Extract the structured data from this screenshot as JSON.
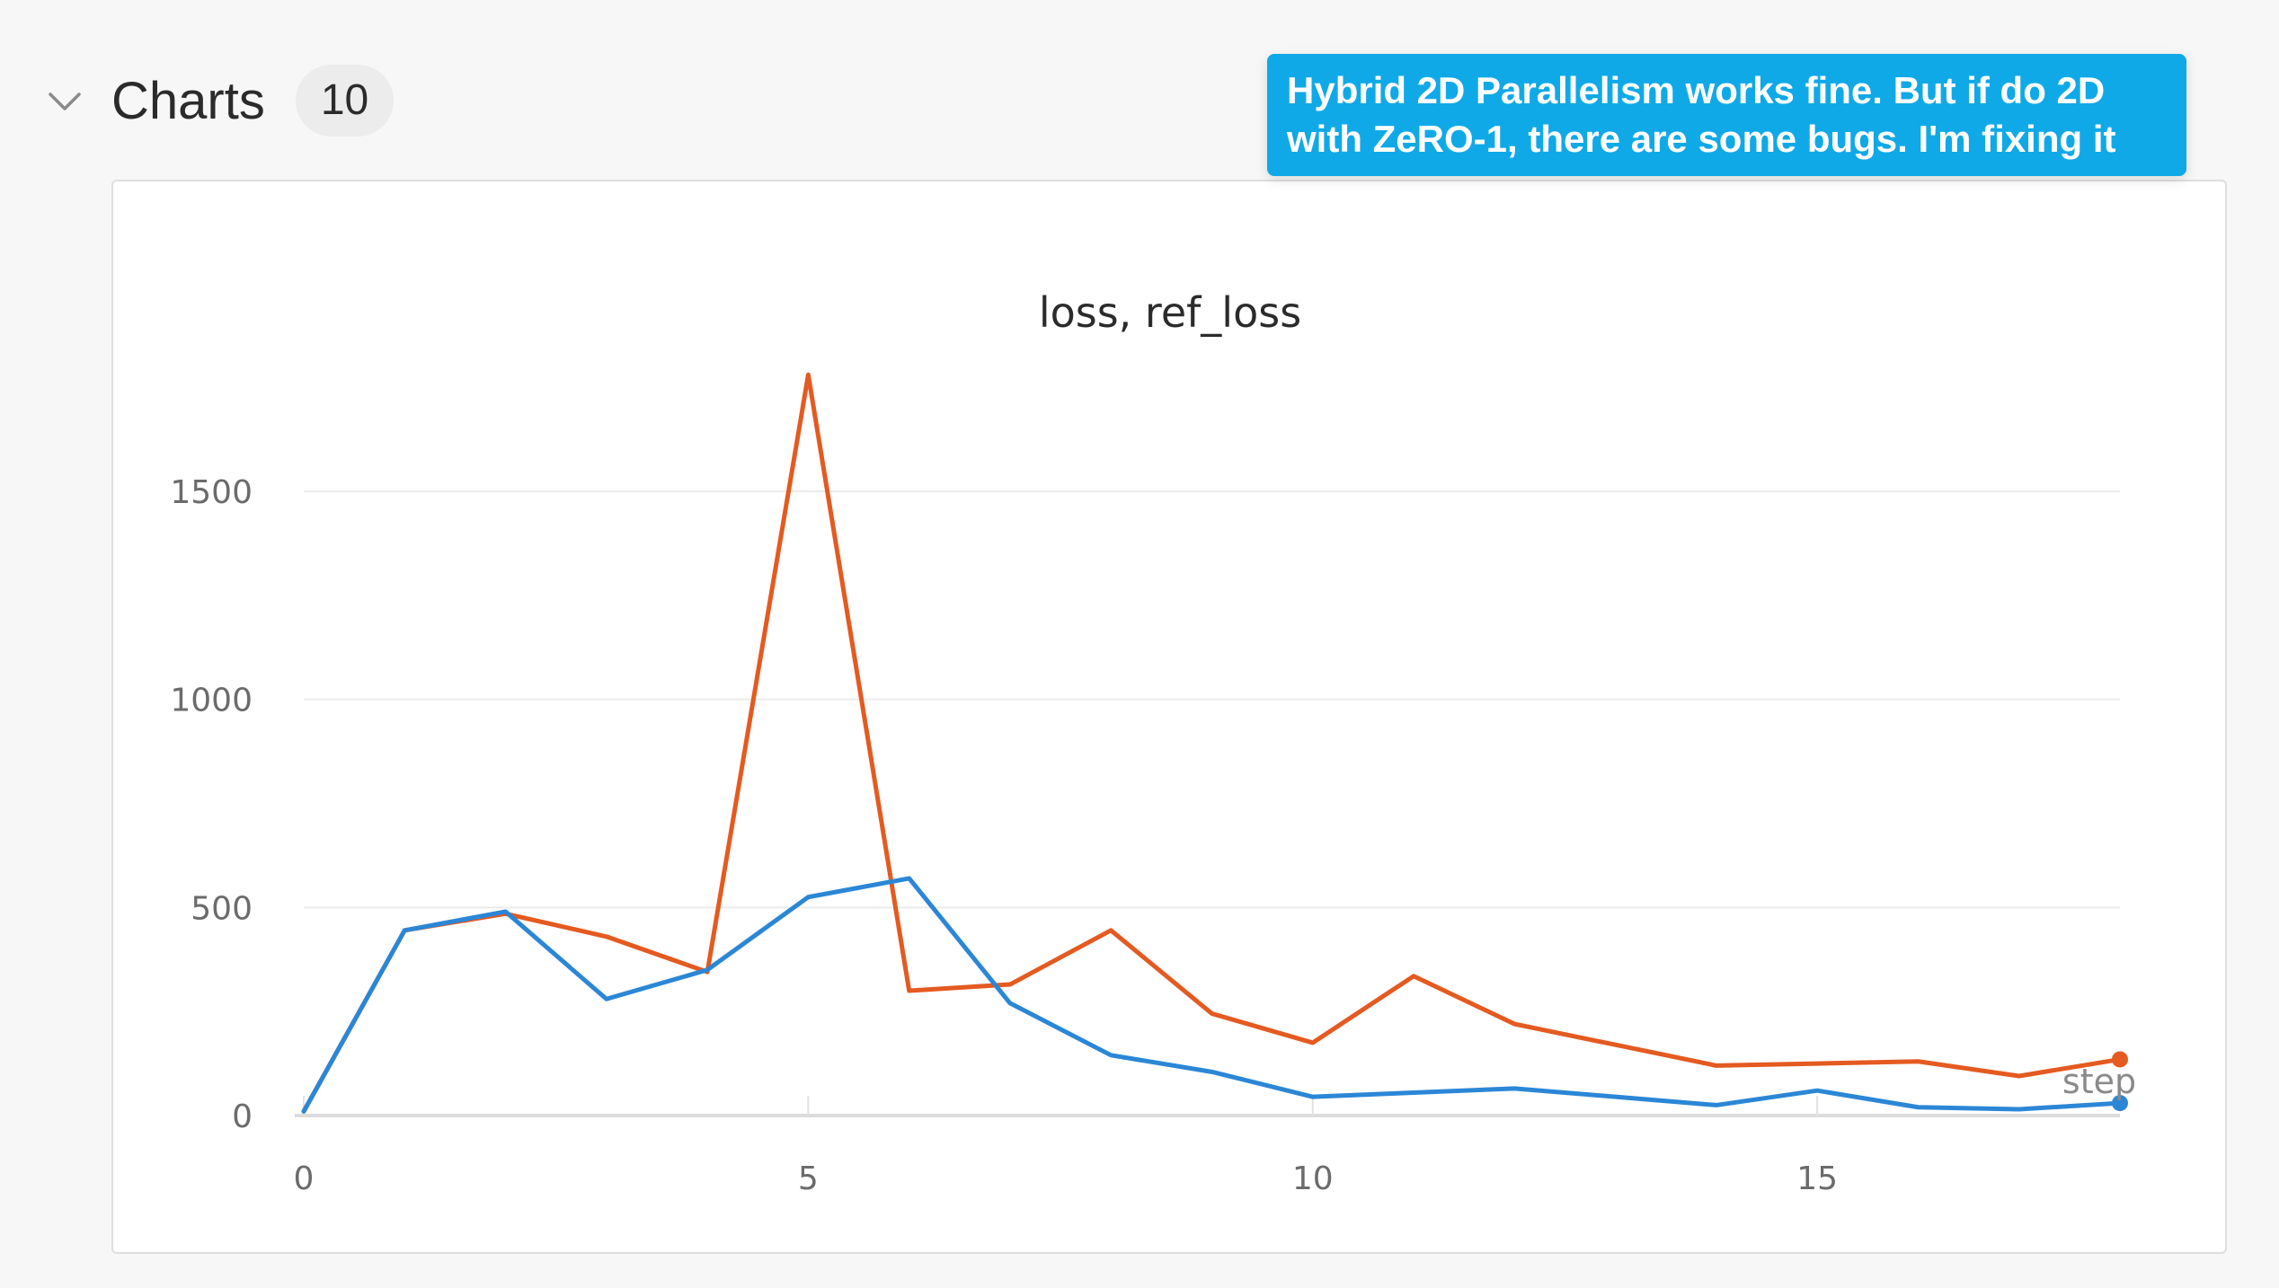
{
  "section": {
    "title": "Charts",
    "count": "10"
  },
  "annotation": {
    "text": "Hybrid 2D Parallelism works fine. But if do 2D with ZeRO-1, there are some bugs. I'm fixing it"
  },
  "chart_data": {
    "type": "line",
    "title": "loss, ref_loss",
    "xlabel": "step",
    "ylabel": "",
    "xlim": [
      0,
      18
    ],
    "ylim": [
      0,
      1700
    ],
    "x_ticks": [
      0,
      5,
      10,
      15
    ],
    "y_ticks": [
      0,
      500,
      1000,
      1500
    ],
    "grid": true,
    "x": [
      0,
      1,
      2,
      3,
      4,
      5,
      6,
      7,
      8,
      9,
      10,
      11,
      12,
      13,
      14,
      15,
      16,
      17,
      18
    ],
    "series": [
      {
        "color": "#e45a20",
        "values": [
          10,
          445,
          485,
          430,
          345,
          1780,
          300,
          315,
          445,
          245,
          175,
          335,
          220,
          170,
          120,
          125,
          130,
          95,
          135
        ]
      },
      {
        "color": "#2b87d6",
        "values": [
          10,
          445,
          490,
          280,
          350,
          525,
          570,
          270,
          145,
          105,
          45,
          55,
          65,
          45,
          25,
          60,
          20,
          15,
          30
        ]
      }
    ]
  }
}
